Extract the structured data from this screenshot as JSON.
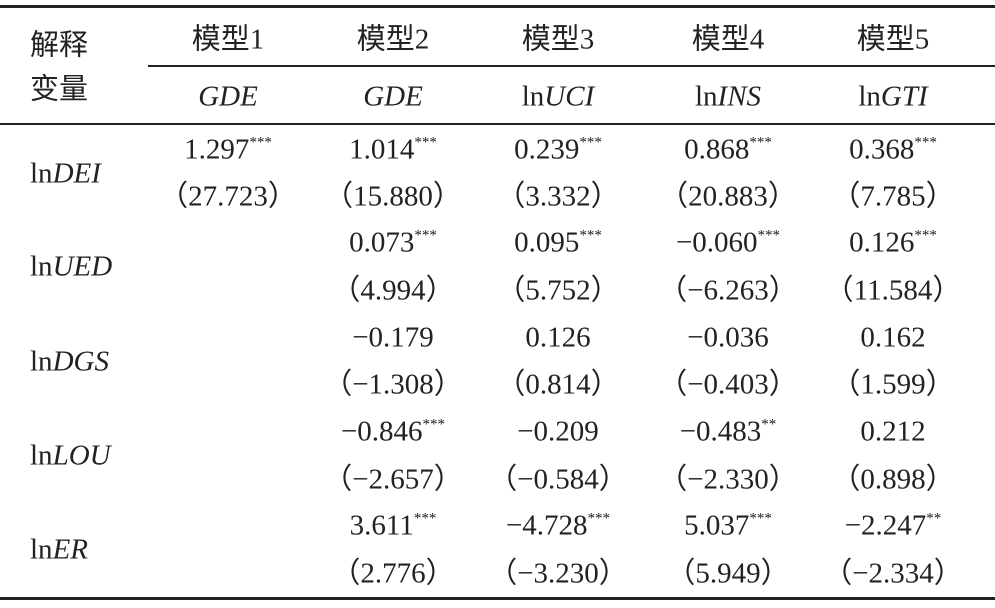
{
  "header": {
    "row_header": [
      "解释",
      "变量"
    ],
    "models": [
      "模型1",
      "模型2",
      "模型3",
      "模型4",
      "模型5"
    ],
    "dependent": [
      {
        "text": "GDE"
      },
      {
        "text": "GDE"
      },
      {
        "prefix": "ln",
        "text": "UCI"
      },
      {
        "prefix": "ln",
        "text": "INS"
      },
      {
        "prefix": "ln",
        "text": "GTI"
      }
    ]
  },
  "rows": [
    {
      "prefix": "ln",
      "name": "DEI",
      "cells": [
        {
          "coef": "1.297",
          "stars": "***",
          "t": "（27.723）"
        },
        {
          "coef": "1.014",
          "stars": "***",
          "t": "（15.880）"
        },
        {
          "coef": "0.239",
          "stars": "***",
          "t": "（3.332）"
        },
        {
          "coef": "0.868",
          "stars": "***",
          "t": "（20.883）"
        },
        {
          "coef": "0.368",
          "stars": "***",
          "t": "（7.785）"
        }
      ]
    },
    {
      "prefix": "ln",
      "name": "UED",
      "cells": [
        null,
        {
          "coef": "0.073",
          "stars": "***",
          "t": "（4.994）"
        },
        {
          "coef": "0.095",
          "stars": "***",
          "t": "（5.752）"
        },
        {
          "coef": "−0.060",
          "stars": "***",
          "t": "（−6.263）"
        },
        {
          "coef": "0.126",
          "stars": "***",
          "t": "（11.584）"
        }
      ]
    },
    {
      "prefix": "ln",
      "name": "DGS",
      "cells": [
        null,
        {
          "coef": "−0.179",
          "t": "（−1.308）"
        },
        {
          "coef": "0.126",
          "t": "（0.814）"
        },
        {
          "coef": "−0.036",
          "t": "（−0.403）"
        },
        {
          "coef": "0.162",
          "t": "（1.599）"
        }
      ]
    },
    {
      "prefix": "ln",
      "name": "LOU",
      "cells": [
        null,
        {
          "coef": "−0.846",
          "stars": "***",
          "t": "（−2.657）"
        },
        {
          "coef": "−0.209",
          "t": "（−0.584）"
        },
        {
          "coef": "−0.483",
          "stars": "**",
          "t": "（−2.330）"
        },
        {
          "coef": "0.212",
          "t": "（0.898）"
        }
      ]
    },
    {
      "prefix": "ln",
      "name": "ER",
      "cells": [
        null,
        {
          "coef": "3.611",
          "stars": "***",
          "t": "（2.776）"
        },
        {
          "coef": "−4.728",
          "stars": "***",
          "t": "（−3.230）"
        },
        {
          "coef": "5.037",
          "stars": "***",
          "t": "（5.949）"
        },
        {
          "coef": "−2.247",
          "stars": "**",
          "t": "（−2.334）"
        }
      ]
    }
  ]
}
